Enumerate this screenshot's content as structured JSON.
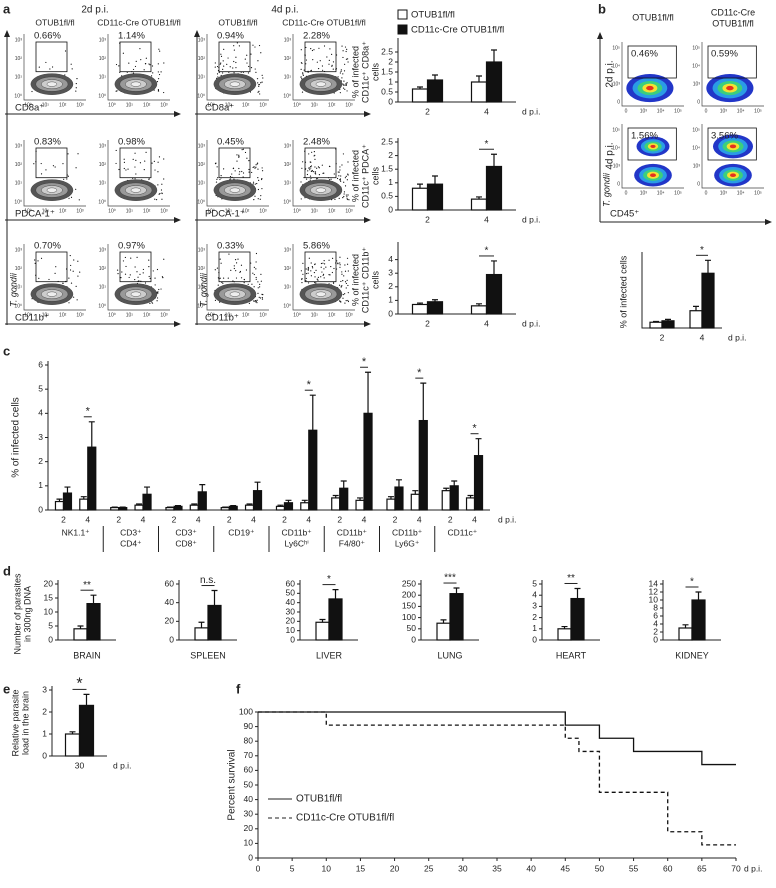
{
  "panels": [
    "a",
    "b",
    "c",
    "d",
    "e",
    "f"
  ],
  "flow_a": {
    "headers": [
      "2d p.i.",
      "4d p.i."
    ],
    "columns": [
      "OTUB1fl/fl",
      "CD11c-Cre OTUB1fl/fl"
    ],
    "markers": [
      "CD8a⁺",
      "PDCA-1⁺",
      "CD11b⁺"
    ],
    "y_label": "T. gondii",
    "ticks": [
      "10⁰",
      "10¹",
      "10²",
      "10³"
    ],
    "gates": [
      [
        [
          "0.66%",
          "1.14%"
        ],
        [
          "0.83%",
          "0.98%"
        ],
        [
          "0.70%",
          "0.97%"
        ]
      ],
      [
        [
          "0.94%",
          "2.28%"
        ],
        [
          "0.45%",
          "2.48%"
        ],
        [
          "0.33%",
          "5.86%"
        ]
      ]
    ]
  },
  "flow_b": {
    "rows": [
      "2d p.i.",
      "4d p.i."
    ],
    "columns": [
      [
        "OTUB1fl/fl"
      ],
      [
        "CD11c-Cre",
        "OTUB1fl/fl"
      ]
    ],
    "marker": "CD45⁺",
    "y_label": "T. gondii",
    "ticks": [
      "0",
      "10³",
      "10⁴",
      "10⁵"
    ],
    "gates": [
      [
        "0.46%",
        "0.59%"
      ],
      [
        "1.56%",
        "3.56%"
      ]
    ]
  },
  "chart_data": [
    {
      "type": "bar",
      "y_label": [
        "% of infected",
        "CD11c⁺ CD8a⁺",
        "cells"
      ],
      "categories": [
        "2",
        "4"
      ],
      "x_label": "d p.i.",
      "ylim": [
        0,
        3
      ],
      "yticks": [
        0,
        0.5,
        1,
        1.5,
        2,
        2.5
      ],
      "series": [
        {
          "name": "OTUB1fl/fl",
          "color": "#ffffff",
          "values": [
            0.65,
            1.0
          ],
          "errors": [
            0.1,
            0.3
          ]
        },
        {
          "name": "CD11c-Cre OTUB1fl/fl",
          "color": "#111111",
          "values": [
            1.1,
            2.0
          ],
          "errors": [
            0.25,
            0.6
          ]
        }
      ]
    },
    {
      "type": "bar",
      "y_label": [
        "% of infected",
        "CD11c⁺ PDCA⁺",
        "cells"
      ],
      "categories": [
        "2",
        "4"
      ],
      "x_label": "d p.i.",
      "ylim": [
        0,
        2.5
      ],
      "yticks": [
        0,
        0.5,
        1,
        1.5,
        2,
        2.5
      ],
      "annotation": "*",
      "series": [
        {
          "color": "#ffffff",
          "values": [
            0.8,
            0.4
          ],
          "errors": [
            0.15,
            0.08
          ]
        },
        {
          "color": "#111111",
          "values": [
            0.95,
            1.6
          ],
          "errors": [
            0.3,
            0.45
          ]
        }
      ]
    },
    {
      "type": "bar",
      "y_label": [
        "% of infected",
        "CD11c⁺ CD11b⁺",
        "cells"
      ],
      "categories": [
        "2",
        "4"
      ],
      "x_label": "d p.i.",
      "ylim": [
        0,
        5
      ],
      "yticks": [
        0,
        1,
        2,
        3,
        4
      ],
      "annotation": "*",
      "series": [
        {
          "color": "#ffffff",
          "values": [
            0.7,
            0.6
          ],
          "errors": [
            0.1,
            0.15
          ]
        },
        {
          "color": "#111111",
          "values": [
            0.9,
            2.9
          ],
          "errors": [
            0.15,
            1.0
          ]
        }
      ]
    },
    {
      "type": "bar",
      "y_label": [
        "% of infected cells"
      ],
      "categories": [
        "2",
        "4"
      ],
      "x_label": "d p.i.",
      "ylim": [
        0,
        5
      ],
      "annotation": "*",
      "series": [
        {
          "color": "#ffffff",
          "values": [
            0.4,
            1.2
          ],
          "errors": [
            0.05,
            0.3
          ]
        },
        {
          "color": "#111111",
          "values": [
            0.5,
            3.8
          ],
          "errors": [
            0.1,
            0.9
          ]
        }
      ]
    },
    {
      "type": "grouped_bar",
      "y_label": [
        "% of infected cells"
      ],
      "days": [
        "2",
        "4"
      ],
      "x_label": "d p.i.",
      "groups": [
        [
          "NK1.1⁺"
        ],
        [
          "CD3⁺",
          "CD4⁺"
        ],
        [
          "CD3⁺",
          "CD8⁺"
        ],
        [
          "CD19⁺"
        ],
        [
          "CD11b⁺",
          "Ly6Cʰⁱ"
        ],
        [
          "CD11b⁺",
          "F4/80⁺"
        ],
        [
          "CD11b⁺",
          "Ly6G⁺"
        ],
        [
          "CD11c⁺"
        ]
      ],
      "annotations": [
        "*",
        null,
        null,
        null,
        "*",
        "*",
        "*",
        "*"
      ],
      "ylim": [
        0,
        6
      ],
      "yticks": [
        0,
        1,
        2,
        3,
        4,
        5,
        6
      ],
      "series": [
        {
          "color": "#ffffff",
          "values": [
            [
              0.35,
              0.45
            ],
            [
              0.1,
              0.2
            ],
            [
              0.1,
              0.2
            ],
            [
              0.1,
              0.2
            ],
            [
              0.15,
              0.3
            ],
            [
              0.5,
              0.4
            ],
            [
              0.45,
              0.65
            ],
            [
              0.8,
              0.5
            ]
          ],
          "errors": [
            [
              0.1,
              0.1
            ],
            [
              0.02,
              0.05
            ],
            [
              0.02,
              0.05
            ],
            [
              0.02,
              0.05
            ],
            [
              0.05,
              0.1
            ],
            [
              0.1,
              0.1
            ],
            [
              0.1,
              0.15
            ],
            [
              0.1,
              0.1
            ]
          ]
        },
        {
          "color": "#111111",
          "values": [
            [
              0.7,
              2.6
            ],
            [
              0.1,
              0.65
            ],
            [
              0.15,
              0.75
            ],
            [
              0.15,
              0.8
            ],
            [
              0.3,
              3.3
            ],
            [
              0.9,
              4.0
            ],
            [
              0.95,
              3.7
            ],
            [
              1.0,
              2.25
            ]
          ],
          "errors": [
            [
              0.25,
              1.05
            ],
            [
              0.02,
              0.3
            ],
            [
              0.03,
              0.3
            ],
            [
              0.03,
              0.35
            ],
            [
              0.1,
              1.45
            ],
            [
              0.3,
              1.7
            ],
            [
              0.3,
              1.55
            ],
            [
              0.2,
              0.7
            ]
          ]
        }
      ]
    },
    {
      "type": "bar",
      "title": "BRAIN",
      "y_label": [
        "Number of parasites",
        "in 300ng DNA"
      ],
      "annotation": "**",
      "ylim": [
        0,
        20
      ],
      "yticks": [
        0,
        5,
        10,
        15,
        20
      ],
      "series": [
        {
          "color": "#ffffff",
          "values": [
            4
          ],
          "errors": [
            1
          ]
        },
        {
          "color": "#111111",
          "values": [
            13
          ],
          "errors": [
            3
          ]
        }
      ]
    },
    {
      "type": "bar",
      "title": "SPLEEN",
      "annotation": "n.s.",
      "ylim": [
        0,
        60
      ],
      "yticks": [
        0,
        20,
        40,
        60
      ],
      "series": [
        {
          "color": "#ffffff",
          "values": [
            13
          ],
          "errors": [
            6
          ]
        },
        {
          "color": "#111111",
          "values": [
            37
          ],
          "errors": [
            16
          ]
        }
      ]
    },
    {
      "type": "bar",
      "title": "LIVER",
      "annotation": "*",
      "ylim": [
        0,
        60
      ],
      "yticks": [
        0,
        10,
        20,
        30,
        40,
        50,
        60
      ],
      "series": [
        {
          "color": "#ffffff",
          "values": [
            19
          ],
          "errors": [
            3
          ]
        },
        {
          "color": "#111111",
          "values": [
            44
          ],
          "errors": [
            10
          ]
        }
      ]
    },
    {
      "type": "bar",
      "title": "LUNG",
      "annotation": "***",
      "ylim": [
        0,
        250
      ],
      "yticks": [
        0,
        50,
        100,
        150,
        200,
        250
      ],
      "series": [
        {
          "color": "#ffffff",
          "values": [
            75
          ],
          "errors": [
            15
          ]
        },
        {
          "color": "#111111",
          "values": [
            207
          ],
          "errors": [
            25
          ]
        }
      ]
    },
    {
      "type": "bar",
      "title": "HEART",
      "annotation": "**",
      "ylim": [
        0,
        5
      ],
      "yticks": [
        0,
        1,
        2,
        3,
        4,
        5
      ],
      "series": [
        {
          "color": "#ffffff",
          "values": [
            1
          ],
          "errors": [
            0.2
          ]
        },
        {
          "color": "#111111",
          "values": [
            3.7
          ],
          "errors": [
            0.9
          ]
        }
      ]
    },
    {
      "type": "bar",
      "title": "KIDNEY",
      "annotation": "*",
      "ylim": [
        0,
        14
      ],
      "yticks": [
        0,
        2,
        4,
        6,
        8,
        10,
        12,
        14
      ],
      "series": [
        {
          "color": "#ffffff",
          "values": [
            3
          ],
          "errors": [
            0.8
          ]
        },
        {
          "color": "#111111",
          "values": [
            10
          ],
          "errors": [
            2
          ]
        }
      ]
    },
    {
      "type": "bar",
      "y_label": [
        "Relative parasite",
        "load in the brain"
      ],
      "categories": [
        "30"
      ],
      "x_label": "d p.i.",
      "annotation": "*",
      "ylim": [
        0,
        3
      ],
      "yticks": [
        0,
        1,
        2,
        3
      ],
      "series": [
        {
          "color": "#ffffff",
          "values": [
            1
          ],
          "errors": [
            0.1
          ]
        },
        {
          "color": "#111111",
          "values": [
            2.3
          ],
          "errors": [
            0.5
          ]
        }
      ]
    },
    {
      "type": "line",
      "y_label": "Percent survival",
      "x_label": "d p.i.",
      "xlim": [
        0,
        70
      ],
      "xticks": [
        0,
        5,
        10,
        15,
        20,
        25,
        30,
        35,
        40,
        45,
        50,
        55,
        60,
        65,
        70
      ],
      "ylim": [
        0,
        100
      ],
      "yticks": [
        0,
        10,
        20,
        30,
        40,
        50,
        60,
        70,
        80,
        90,
        100
      ],
      "series": [
        {
          "name": "OTUB1fl/fl",
          "color": "#111111",
          "line_style": "solid",
          "x": [
            0,
            45,
            45,
            50,
            50,
            55,
            55,
            65,
            65,
            70
          ],
          "values": [
            100,
            100,
            91,
            91,
            82,
            82,
            73,
            73,
            64,
            64
          ]
        },
        {
          "name": "CD11c-Cre OTUB1fl/fl",
          "color": "#111111",
          "line_style": "dashed",
          "x": [
            0,
            10,
            10,
            45,
            45,
            47,
            47,
            50,
            50,
            60,
            60,
            65,
            65,
            70
          ],
          "values": [
            100,
            100,
            91,
            91,
            82,
            82,
            73,
            73,
            45,
            45,
            18,
            18,
            9,
            9
          ]
        }
      ]
    }
  ]
}
